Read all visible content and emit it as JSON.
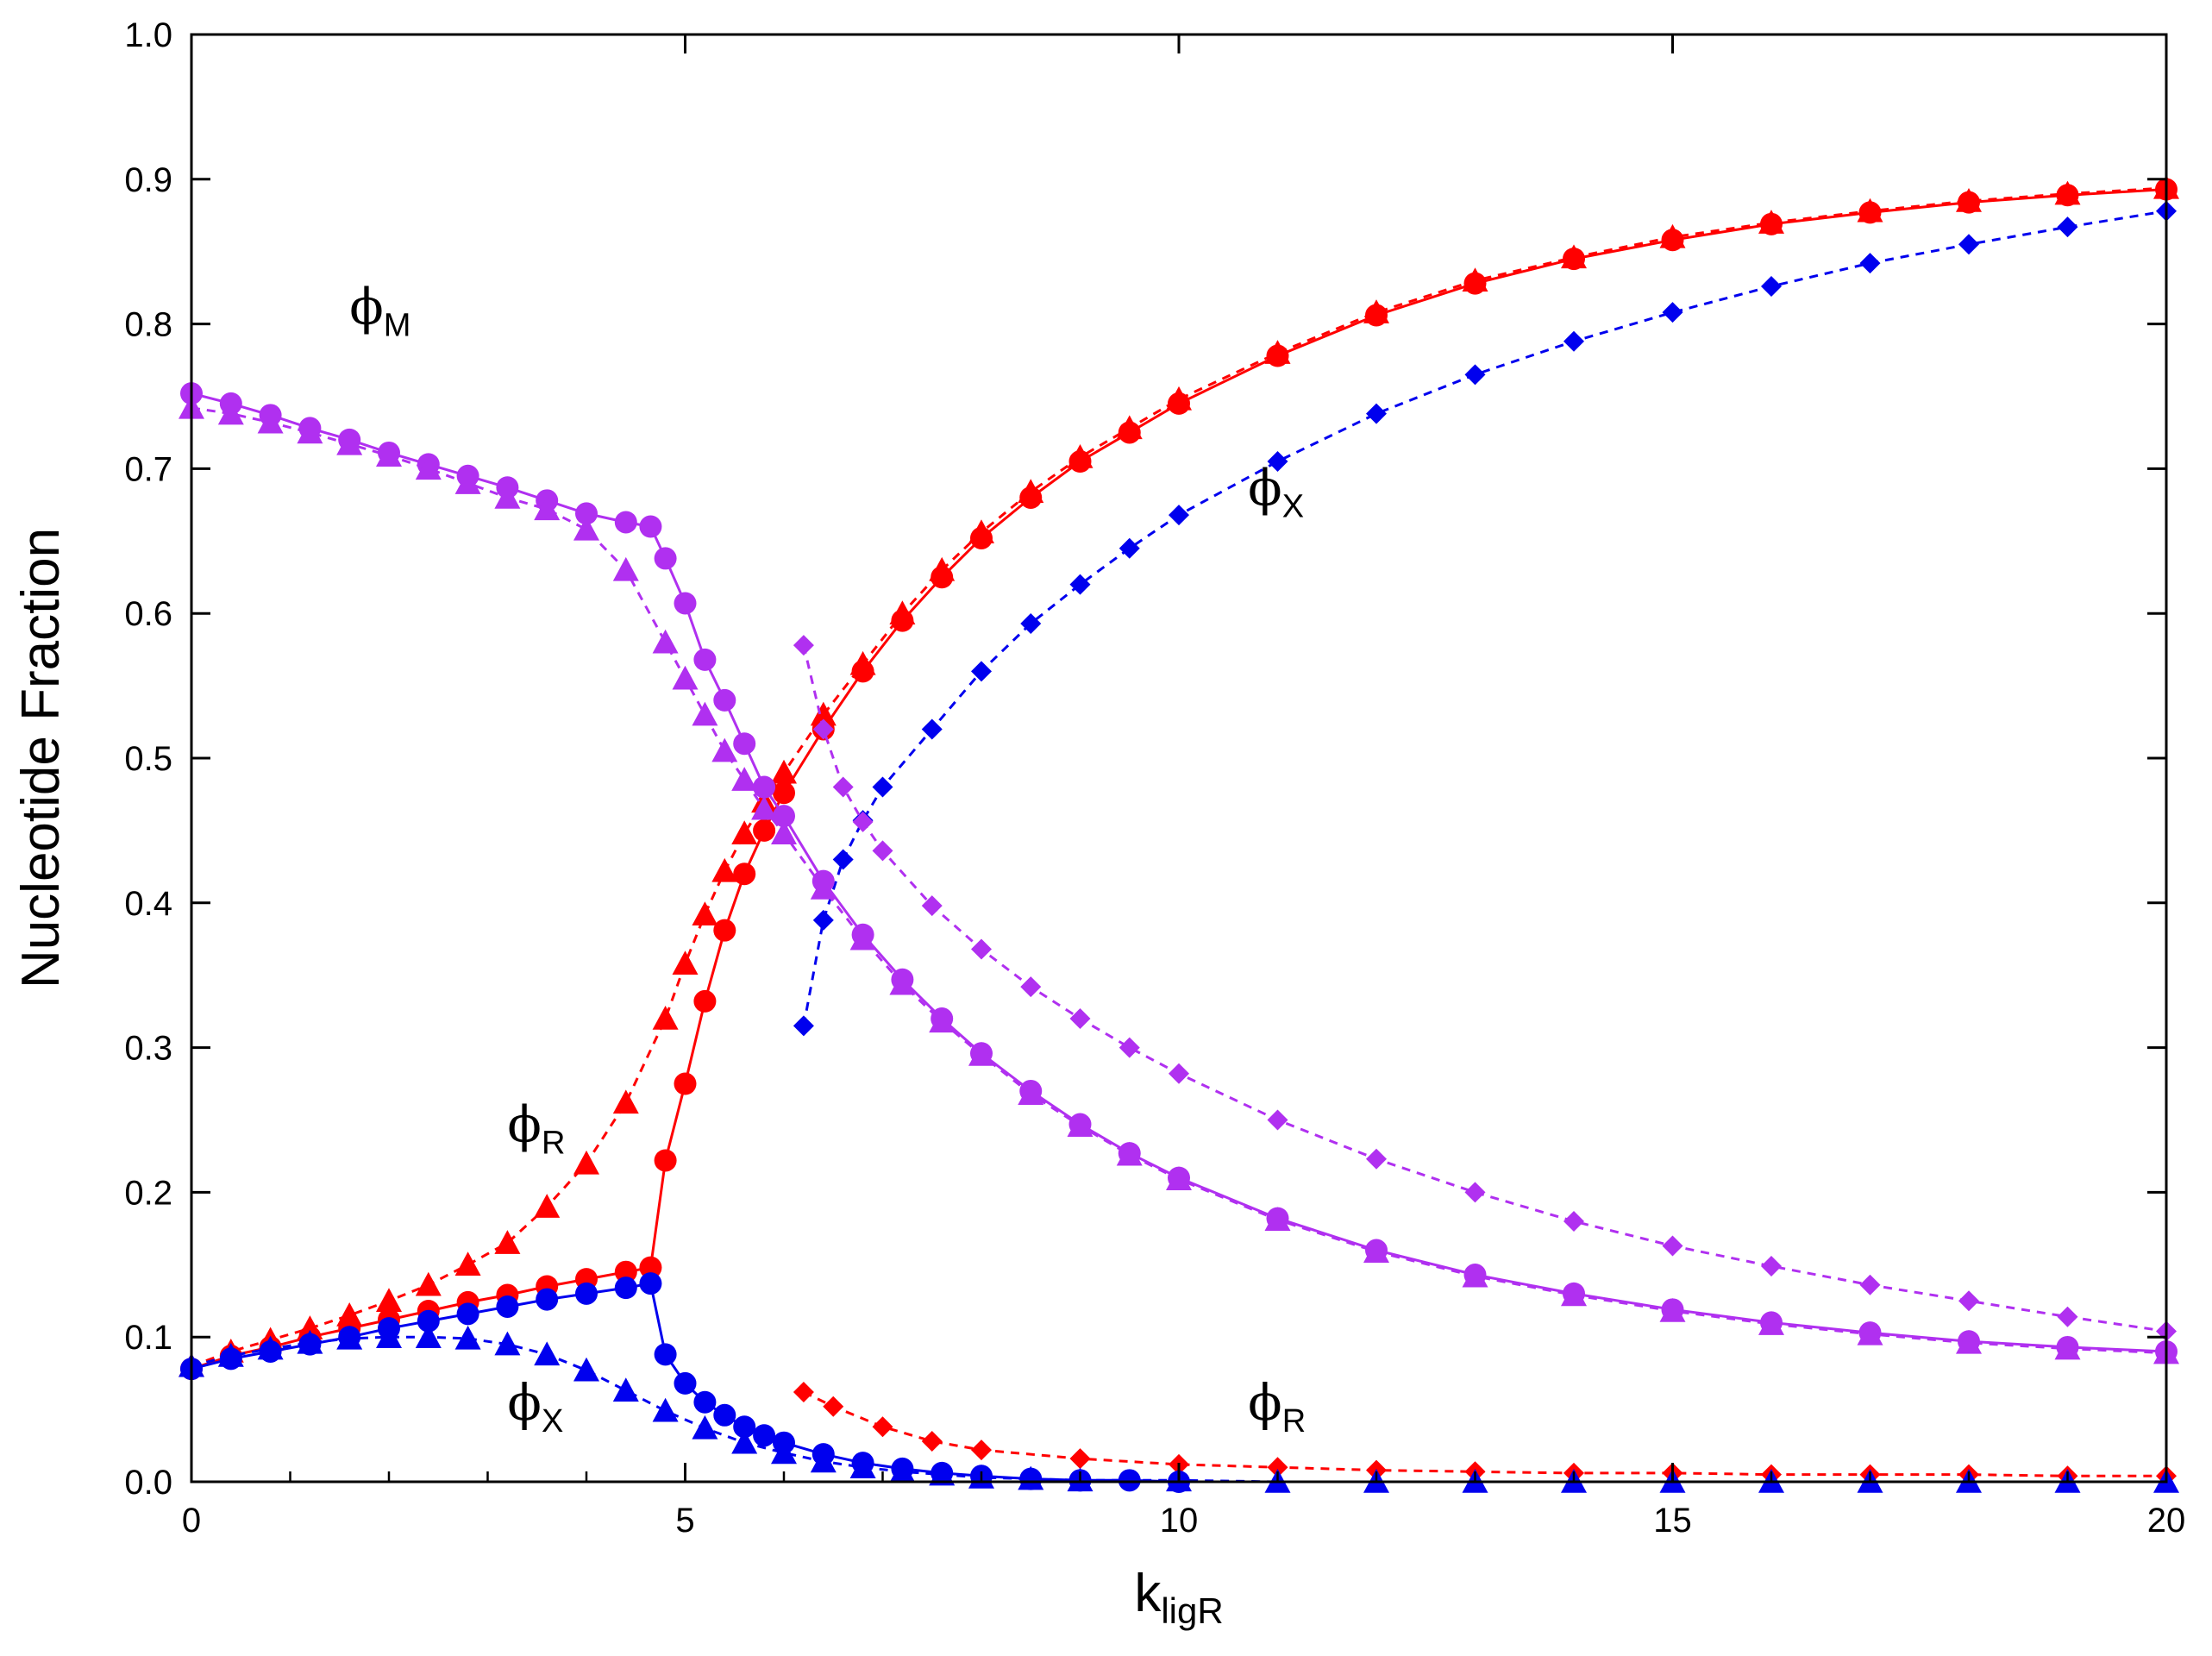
{
  "chart_data": {
    "type": "scatter",
    "title": "",
    "xlabel": "k",
    "xlabel_sub": "ligR",
    "ylabel": "Nucleotide Fraction",
    "xlim": [
      0,
      20
    ],
    "ylim": [
      0,
      1.0
    ],
    "xticks": [
      "0",
      "5",
      "10",
      "15",
      "20"
    ],
    "yticks": [
      "0.0",
      "0.1",
      "0.2",
      "0.3",
      "0.4",
      "0.5",
      "0.6",
      "0.7",
      "0.8",
      "0.9",
      "1.0"
    ],
    "grid": false,
    "legend": "none",
    "colors": {
      "red": "#ff0000",
      "blue": "#0000ee",
      "purple": "#b030f0"
    },
    "annotations": [
      {
        "symbol": "ϕ",
        "sub": "M",
        "x": 1.6,
        "y": 0.8
      },
      {
        "symbol": "ϕ",
        "sub": "X",
        "x": 10.7,
        "y": 0.675
      },
      {
        "symbol": "ϕ",
        "sub": "R",
        "x": 3.2,
        "y": 0.235
      },
      {
        "symbol": "ϕ",
        "sub": "X",
        "x": 3.2,
        "y": 0.043
      },
      {
        "symbol": "ϕ",
        "sub": "R",
        "x": 10.7,
        "y": 0.043
      }
    ],
    "series": [
      {
        "marker": "circle",
        "color": "red",
        "line": "solid",
        "x": [
          0,
          0.4,
          0.8,
          1.2,
          1.6,
          2.0,
          2.4,
          2.8,
          3.2,
          3.6,
          4.0,
          4.4,
          4.65,
          4.8,
          5.0,
          5.2,
          5.4,
          5.6,
          5.8,
          6.0,
          6.4,
          6.8,
          7.2,
          7.6,
          8.0,
          8.5,
          9.0,
          9.5,
          10,
          11,
          12,
          13,
          14,
          15,
          16,
          17,
          18,
          19,
          20
        ],
        "y": [
          0.078,
          0.087,
          0.093,
          0.1,
          0.106,
          0.112,
          0.118,
          0.124,
          0.129,
          0.135,
          0.14,
          0.145,
          0.148,
          0.222,
          0.275,
          0.332,
          0.381,
          0.42,
          0.45,
          0.476,
          0.52,
          0.56,
          0.595,
          0.625,
          0.652,
          0.68,
          0.705,
          0.725,
          0.745,
          0.778,
          0.806,
          0.828,
          0.845,
          0.858,
          0.869,
          0.877,
          0.884,
          0.889,
          0.893
        ]
      },
      {
        "marker": "triangle",
        "color": "red",
        "line": "dashed",
        "x": [
          0,
          0.4,
          0.8,
          1.2,
          1.6,
          2.0,
          2.4,
          2.8,
          3.2,
          3.6,
          4.0,
          4.4,
          4.8,
          5.0,
          5.2,
          5.4,
          5.6,
          5.8,
          6.0,
          6.4,
          6.8,
          7.2,
          7.6,
          8.0,
          8.5,
          9.0,
          9.5,
          10,
          11,
          12,
          13,
          14,
          15,
          16,
          17,
          18,
          19,
          20
        ],
        "y": [
          0.08,
          0.09,
          0.098,
          0.106,
          0.115,
          0.125,
          0.136,
          0.15,
          0.165,
          0.19,
          0.22,
          0.262,
          0.32,
          0.358,
          0.392,
          0.422,
          0.448,
          0.47,
          0.49,
          0.53,
          0.565,
          0.6,
          0.63,
          0.656,
          0.684,
          0.708,
          0.728,
          0.748,
          0.78,
          0.808,
          0.83,
          0.846,
          0.86,
          0.87,
          0.878,
          0.885,
          0.89,
          0.894
        ]
      },
      {
        "marker": "diamond",
        "color": "red",
        "line": "dashed",
        "x": [
          6.2,
          6.5,
          7.0,
          7.5,
          8.0,
          9.0,
          10,
          11,
          12,
          13,
          14,
          15,
          16,
          17,
          18,
          19,
          20
        ],
        "y": [
          0.062,
          0.052,
          0.038,
          0.028,
          0.022,
          0.016,
          0.012,
          0.01,
          0.008,
          0.007,
          0.006,
          0.006,
          0.005,
          0.005,
          0.005,
          0.004,
          0.004
        ]
      },
      {
        "marker": "circle",
        "color": "blue",
        "line": "solid",
        "x": [
          0,
          0.4,
          0.8,
          1.2,
          1.6,
          2.0,
          2.4,
          2.8,
          3.2,
          3.6,
          4.0,
          4.4,
          4.65,
          4.8,
          5.0,
          5.2,
          5.4,
          5.6,
          5.8,
          6.0,
          6.4,
          6.8,
          7.2,
          7.6,
          8.0,
          8.5,
          9.0,
          9.5,
          10
        ],
        "y": [
          0.078,
          0.085,
          0.09,
          0.095,
          0.1,
          0.106,
          0.111,
          0.116,
          0.121,
          0.126,
          0.13,
          0.134,
          0.137,
          0.088,
          0.068,
          0.055,
          0.046,
          0.038,
          0.032,
          0.027,
          0.019,
          0.013,
          0.009,
          0.006,
          0.004,
          0.002,
          0.001,
          0.001,
          0.0
        ]
      },
      {
        "marker": "triangle",
        "color": "blue",
        "line": "dashed",
        "x": [
          0,
          0.4,
          0.8,
          1.2,
          1.6,
          2.0,
          2.4,
          2.8,
          3.2,
          3.6,
          4.0,
          4.4,
          4.8,
          5.2,
          5.6,
          6.0,
          6.4,
          6.8,
          7.2,
          7.6,
          8.0,
          8.5,
          9.0,
          10,
          11,
          12,
          13,
          14,
          15,
          16,
          17,
          18,
          19,
          20
        ],
        "y": [
          0.08,
          0.087,
          0.092,
          0.096,
          0.099,
          0.1,
          0.1,
          0.099,
          0.095,
          0.088,
          0.077,
          0.063,
          0.049,
          0.037,
          0.027,
          0.02,
          0.014,
          0.01,
          0.007,
          0.005,
          0.003,
          0.002,
          0.001,
          0.001,
          0.0,
          0.0,
          0.0,
          0.0,
          0.0,
          0.0,
          0.0,
          0.0,
          0.0,
          0.0
        ]
      },
      {
        "marker": "diamond",
        "color": "blue",
        "line": "dashed",
        "x": [
          6.2,
          6.4,
          6.6,
          6.8,
          7.0,
          7.5,
          8.0,
          8.5,
          9.0,
          9.5,
          10,
          11,
          12,
          13,
          14,
          15,
          16,
          17,
          18,
          19,
          20
        ],
        "y": [
          0.315,
          0.388,
          0.43,
          0.457,
          0.48,
          0.52,
          0.56,
          0.593,
          0.62,
          0.645,
          0.668,
          0.705,
          0.738,
          0.765,
          0.788,
          0.808,
          0.826,
          0.842,
          0.855,
          0.867,
          0.878
        ]
      },
      {
        "marker": "circle",
        "color": "purple",
        "line": "solid",
        "x": [
          0,
          0.4,
          0.8,
          1.2,
          1.6,
          2.0,
          2.4,
          2.8,
          3.2,
          3.6,
          4.0,
          4.4,
          4.65,
          4.8,
          5.0,
          5.2,
          5.4,
          5.6,
          5.8,
          6.0,
          6.4,
          6.8,
          7.2,
          7.6,
          8.0,
          8.5,
          9.0,
          9.5,
          10,
          11,
          12,
          13,
          14,
          15,
          16,
          17,
          18,
          19,
          20
        ],
        "y": [
          0.752,
          0.745,
          0.737,
          0.728,
          0.72,
          0.711,
          0.703,
          0.695,
          0.687,
          0.678,
          0.669,
          0.663,
          0.66,
          0.638,
          0.607,
          0.568,
          0.54,
          0.51,
          0.48,
          0.46,
          0.415,
          0.378,
          0.347,
          0.32,
          0.296,
          0.27,
          0.247,
          0.227,
          0.21,
          0.182,
          0.16,
          0.143,
          0.13,
          0.119,
          0.11,
          0.103,
          0.097,
          0.093,
          0.09
        ]
      },
      {
        "marker": "triangle",
        "color": "purple",
        "line": "dashed",
        "x": [
          0,
          0.4,
          0.8,
          1.2,
          1.6,
          2.0,
          2.4,
          2.8,
          3.2,
          3.6,
          4.0,
          4.4,
          4.8,
          5.0,
          5.2,
          5.4,
          5.6,
          5.8,
          6.0,
          6.4,
          6.8,
          7.2,
          7.6,
          8.0,
          8.5,
          9.0,
          9.5,
          10,
          11,
          12,
          13,
          14,
          15,
          16,
          17,
          18,
          19,
          20
        ],
        "y": [
          0.742,
          0.738,
          0.732,
          0.725,
          0.717,
          0.709,
          0.7,
          0.69,
          0.68,
          0.672,
          0.658,
          0.63,
          0.58,
          0.555,
          0.53,
          0.505,
          0.485,
          0.465,
          0.448,
          0.41,
          0.375,
          0.344,
          0.318,
          0.295,
          0.268,
          0.246,
          0.226,
          0.209,
          0.181,
          0.159,
          0.142,
          0.129,
          0.118,
          0.109,
          0.102,
          0.096,
          0.092,
          0.089
        ]
      },
      {
        "marker": "diamond",
        "color": "purple",
        "line": "dashed",
        "x": [
          6.2,
          6.4,
          6.6,
          6.8,
          7.0,
          7.5,
          8.0,
          8.5,
          9.0,
          9.5,
          10,
          11,
          12,
          13,
          14,
          15,
          16,
          17,
          18,
          19,
          20
        ],
        "y": [
          0.578,
          0.52,
          0.48,
          0.456,
          0.436,
          0.398,
          0.368,
          0.342,
          0.32,
          0.3,
          0.282,
          0.25,
          0.223,
          0.2,
          0.18,
          0.163,
          0.149,
          0.136,
          0.125,
          0.114,
          0.104
        ]
      }
    ]
  }
}
